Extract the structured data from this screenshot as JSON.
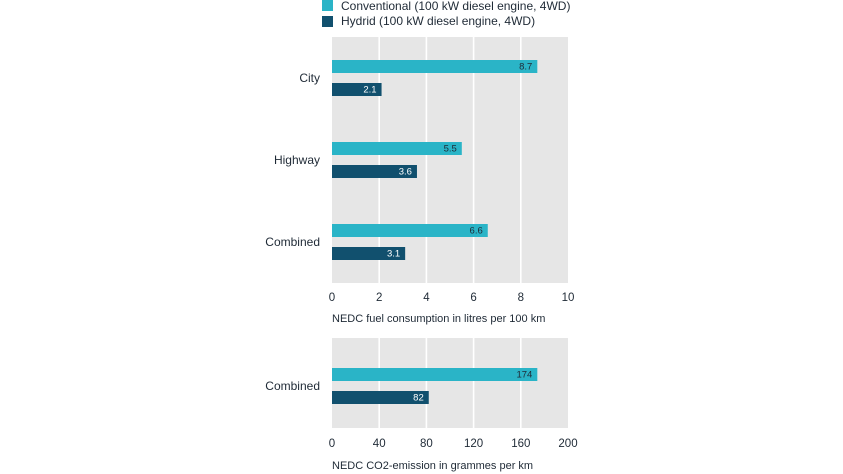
{
  "legend": {
    "items": [
      {
        "label": "Conventional (100 kW diesel engine, 4WD)",
        "color": "#2ab4c7"
      },
      {
        "label": "Hydrid (100 kW diesel engine, 4WD)",
        "color": "#11506e"
      }
    ]
  },
  "colors": {
    "panel_bg": "#e6e6e6",
    "grid": "#ffffff",
    "conventional": "#2ab4c7",
    "hybrid": "#11506e",
    "conventional_label": "#1f2a36",
    "hybrid_label": "#ffffff"
  },
  "chart_data": [
    {
      "type": "bar",
      "orientation": "horizontal",
      "categories": [
        "City",
        "Highway",
        "Combined"
      ],
      "series": [
        {
          "name": "Conventional (100 kW diesel engine, 4WD)",
          "values": [
            8.7,
            5.5,
            6.6
          ],
          "labels": [
            "8.7",
            "5.5",
            "6.6"
          ]
        },
        {
          "name": "Hydrid (100 kW diesel engine, 4WD)",
          "values": [
            2.1,
            3.6,
            3.1
          ],
          "labels": [
            "2.1",
            "3.6",
            "3.1"
          ]
        }
      ],
      "xlabel": "NEDC fuel consumption in litres per 100 km",
      "xlim": [
        0,
        10
      ],
      "xticks": [
        "0",
        "2",
        "4",
        "6",
        "8",
        "10"
      ],
      "grid": true,
      "legend_position": "top"
    },
    {
      "type": "bar",
      "orientation": "horizontal",
      "categories": [
        "Combined"
      ],
      "series": [
        {
          "name": "Conventional (100 kW diesel engine, 4WD)",
          "values": [
            174
          ],
          "labels": [
            "174"
          ]
        },
        {
          "name": "Hydrid (100 kW diesel engine, 4WD)",
          "values": [
            82
          ],
          "labels": [
            "82"
          ]
        }
      ],
      "xlabel": "NEDC CO2-emission in grammes per km",
      "xlim": [
        0,
        200
      ],
      "xticks": [
        "0",
        "40",
        "80",
        "120",
        "160",
        "200"
      ],
      "grid": true
    }
  ]
}
